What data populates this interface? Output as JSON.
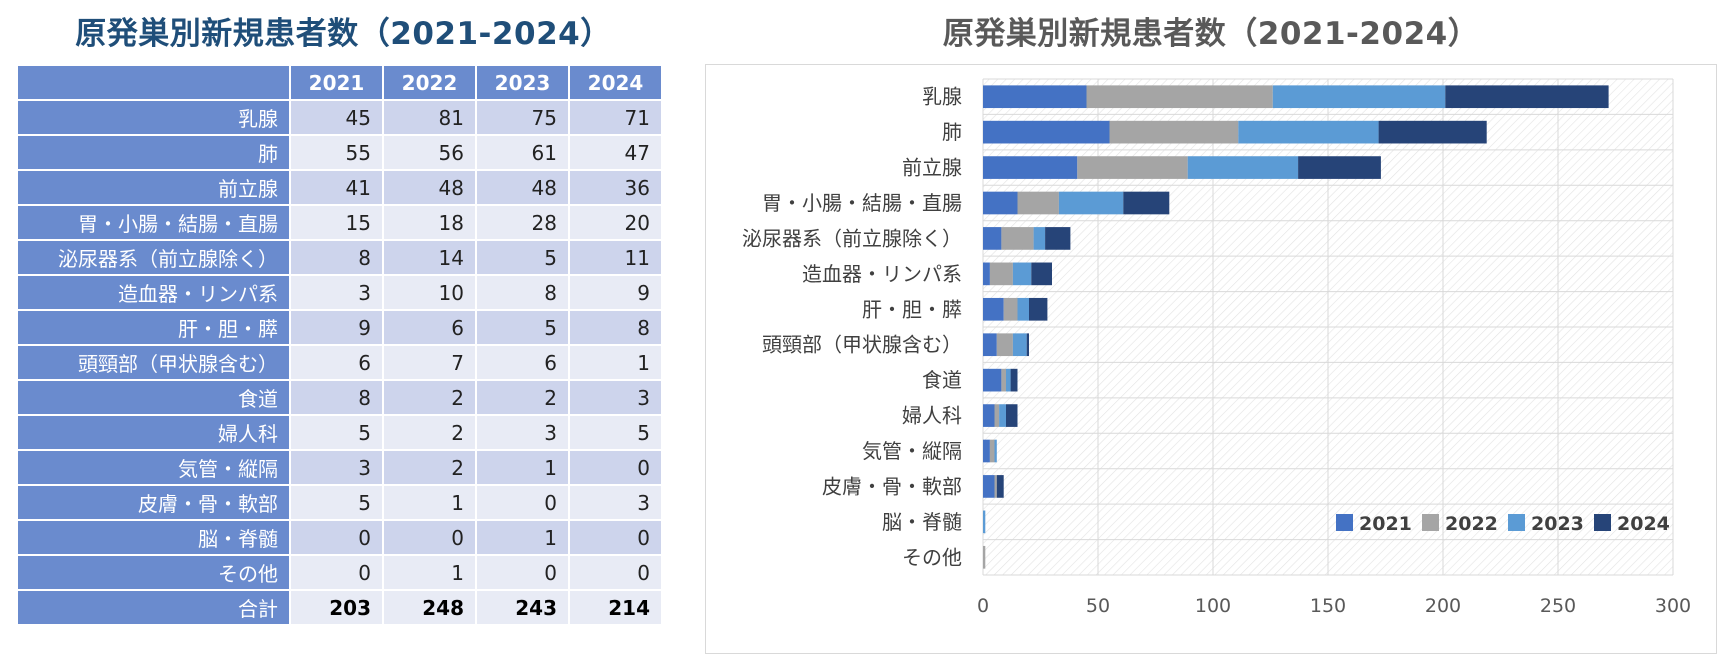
{
  "table": {
    "title": "原発巣別新規患者数（2021-2024）",
    "columns": [
      "2021",
      "2022",
      "2023",
      "2024"
    ],
    "rows": [
      {
        "label": "乳腺",
        "values": [
          45,
          81,
          75,
          71
        ]
      },
      {
        "label": "肺",
        "values": [
          55,
          56,
          61,
          47
        ]
      },
      {
        "label": "前立腺",
        "values": [
          41,
          48,
          48,
          36
        ]
      },
      {
        "label": "胃・小腸・結腸・直腸",
        "values": [
          15,
          18,
          28,
          20
        ]
      },
      {
        "label": "泌尿器系（前立腺除く）",
        "values": [
          8,
          14,
          5,
          11
        ]
      },
      {
        "label": "造血器・リンパ系",
        "values": [
          3,
          10,
          8,
          9
        ]
      },
      {
        "label": "肝・胆・膵",
        "values": [
          9,
          6,
          5,
          8
        ]
      },
      {
        "label": "頭頸部（甲状腺含む）",
        "values": [
          6,
          7,
          6,
          1
        ]
      },
      {
        "label": "食道",
        "values": [
          8,
          2,
          2,
          3
        ]
      },
      {
        "label": "婦人科",
        "values": [
          5,
          2,
          3,
          5
        ]
      },
      {
        "label": "気管・縦隔",
        "values": [
          3,
          2,
          1,
          0
        ]
      },
      {
        "label": "皮膚・骨・軟部",
        "values": [
          5,
          1,
          0,
          3
        ]
      },
      {
        "label": "脳・脊髄",
        "values": [
          0,
          0,
          1,
          0
        ]
      },
      {
        "label": "その他",
        "values": [
          0,
          1,
          0,
          0
        ]
      }
    ],
    "total": {
      "label": "合計",
      "values": [
        203,
        248,
        243,
        214
      ]
    }
  },
  "chart_data": {
    "type": "bar",
    "orientation": "horizontal",
    "stacked": true,
    "title": "原発巣別新規患者数（2021-2024）",
    "categories": [
      "乳腺",
      "肺",
      "前立腺",
      "胃・小腸・結腸・直腸",
      "泌尿器系（前立腺除く）",
      "造血器・リンパ系",
      "肝・胆・膵",
      "頭頸部（甲状腺含む）",
      "食道",
      "婦人科",
      "気管・縦隔",
      "皮膚・骨・軟部",
      "脳・脊髄",
      "その他"
    ],
    "series": [
      {
        "name": "2021",
        "color": "#4472c4",
        "values": [
          45,
          55,
          41,
          15,
          8,
          3,
          9,
          6,
          8,
          5,
          3,
          5,
          0,
          0
        ]
      },
      {
        "name": "2022",
        "color": "#a5a5a5",
        "values": [
          81,
          56,
          48,
          18,
          14,
          10,
          6,
          7,
          2,
          2,
          2,
          1,
          0,
          1
        ]
      },
      {
        "name": "2023",
        "color": "#5b9bd5",
        "values": [
          75,
          61,
          48,
          28,
          5,
          8,
          5,
          6,
          2,
          3,
          1,
          0,
          1,
          0
        ]
      },
      {
        "name": "2024",
        "color": "#264478",
        "values": [
          71,
          47,
          36,
          20,
          11,
          9,
          8,
          1,
          3,
          5,
          0,
          3,
          0,
          0
        ]
      }
    ],
    "xlim": [
      0,
      300
    ],
    "xticks": [
      0,
      50,
      100,
      150,
      200,
      250,
      300
    ],
    "grid": true,
    "legend": "bottom-right",
    "xlabel": "",
    "ylabel": ""
  }
}
